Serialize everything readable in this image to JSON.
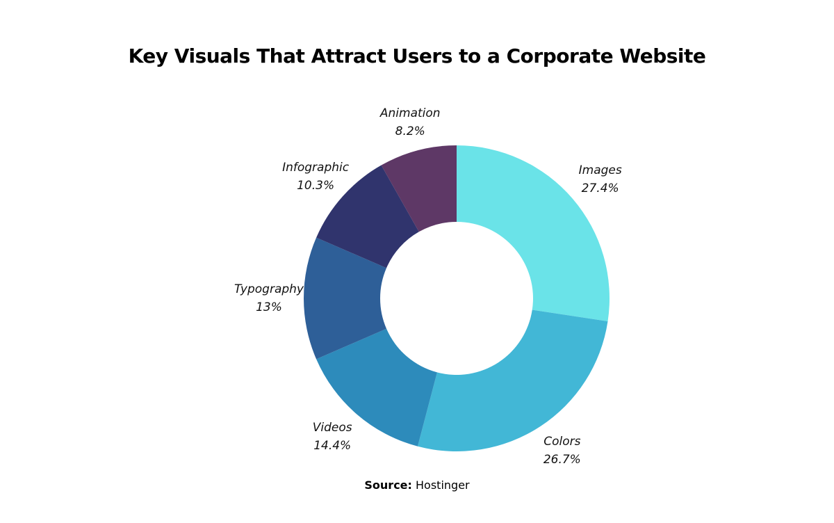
{
  "chart_data": {
    "type": "pie",
    "donut": true,
    "title": "Key Visuals That Attract Users to a Corporate Website",
    "categories": [
      "Images",
      "Colors",
      "Videos",
      "Typography",
      "Infographic",
      "Animation"
    ],
    "values": [
      27.4,
      26.7,
      14.4,
      13,
      10.3,
      8.2
    ],
    "value_labels": [
      "27.4%",
      "26.7%",
      "14.4%",
      "13%",
      "10.3%",
      "8.2%"
    ],
    "colors": [
      "#6ae3e8",
      "#42b7d6",
      "#2d8bbb",
      "#2e5f98",
      "#30346d",
      "#5e3866"
    ],
    "legend": "none"
  },
  "source": {
    "label": "Source:",
    "value": "Hostinger"
  }
}
